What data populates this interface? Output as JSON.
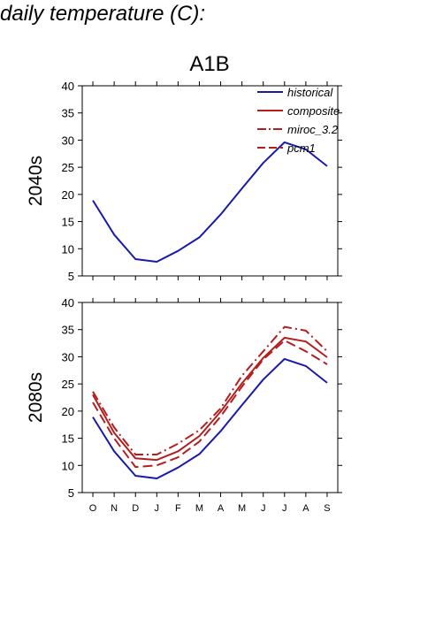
{
  "figure": {
    "title": "daily temperature (C):",
    "scenario": "A1B"
  },
  "colors": {
    "historical": "#1a1aaa",
    "model": "#b41e1e",
    "axis": "#000000"
  },
  "legend": {
    "placement": "top-right",
    "items": [
      {
        "name": "historical",
        "style": "solid",
        "color": "#1a1aaa"
      },
      {
        "name": "composite",
        "style": "solid",
        "color": "#b41e1e"
      },
      {
        "name": "miroc_3.2",
        "style": "dashdot",
        "color": "#b41e1e"
      },
      {
        "name": "pcm1",
        "style": "dashed",
        "color": "#b41e1e"
      }
    ]
  },
  "chart_data": [
    {
      "type": "line",
      "title": "A1B",
      "ylabel": "2040s",
      "categories": [
        "O",
        "N",
        "D",
        "J",
        "F",
        "M",
        "A",
        "M",
        "J",
        "J",
        "A",
        "S"
      ],
      "ylim": [
        5,
        40
      ],
      "yticks": [
        5,
        10,
        15,
        20,
        25,
        30,
        35,
        40
      ],
      "legend_placement": "top-right",
      "grid": false,
      "series": [
        {
          "name": "historical",
          "style": "solid",
          "color": "#1a1aaa",
          "values": [
            18.9,
            12.6,
            8.1,
            7.6,
            9.6,
            12.1,
            16.3,
            21.1,
            25.8,
            29.6,
            28.3,
            25.2
          ]
        }
      ]
    },
    {
      "type": "line",
      "ylabel": "2080s",
      "categories": [
        "O",
        "N",
        "D",
        "J",
        "F",
        "M",
        "A",
        "M",
        "J",
        "J",
        "A",
        "S"
      ],
      "ylim": [
        5,
        40
      ],
      "yticks": [
        5,
        10,
        15,
        20,
        25,
        30,
        35,
        40
      ],
      "grid": false,
      "series": [
        {
          "name": "historical",
          "style": "solid",
          "color": "#1a1aaa",
          "values": [
            18.9,
            12.6,
            8.1,
            7.6,
            9.6,
            12.1,
            16.3,
            21.1,
            25.8,
            29.6,
            28.3,
            25.2
          ]
        },
        {
          "name": "composite",
          "style": "solid",
          "color": "#b41e1e",
          "values": [
            23.0,
            16.0,
            11.3,
            11.0,
            12.6,
            15.4,
            19.9,
            25.1,
            29.8,
            33.5,
            32.8,
            29.9
          ]
        },
        {
          "name": "miroc_3.2",
          "style": "dashdot",
          "color": "#b41e1e",
          "values": [
            23.6,
            17.0,
            12.0,
            12.0,
            14.0,
            16.5,
            20.5,
            26.5,
            31.0,
            35.5,
            34.8,
            31.0
          ]
        },
        {
          "name": "pcm1",
          "style": "dashed",
          "color": "#b41e1e",
          "values": [
            21.6,
            15.0,
            9.7,
            10.0,
            11.5,
            14.4,
            19.0,
            24.5,
            29.5,
            33.0,
            31.0,
            28.6
          ]
        }
      ]
    }
  ]
}
